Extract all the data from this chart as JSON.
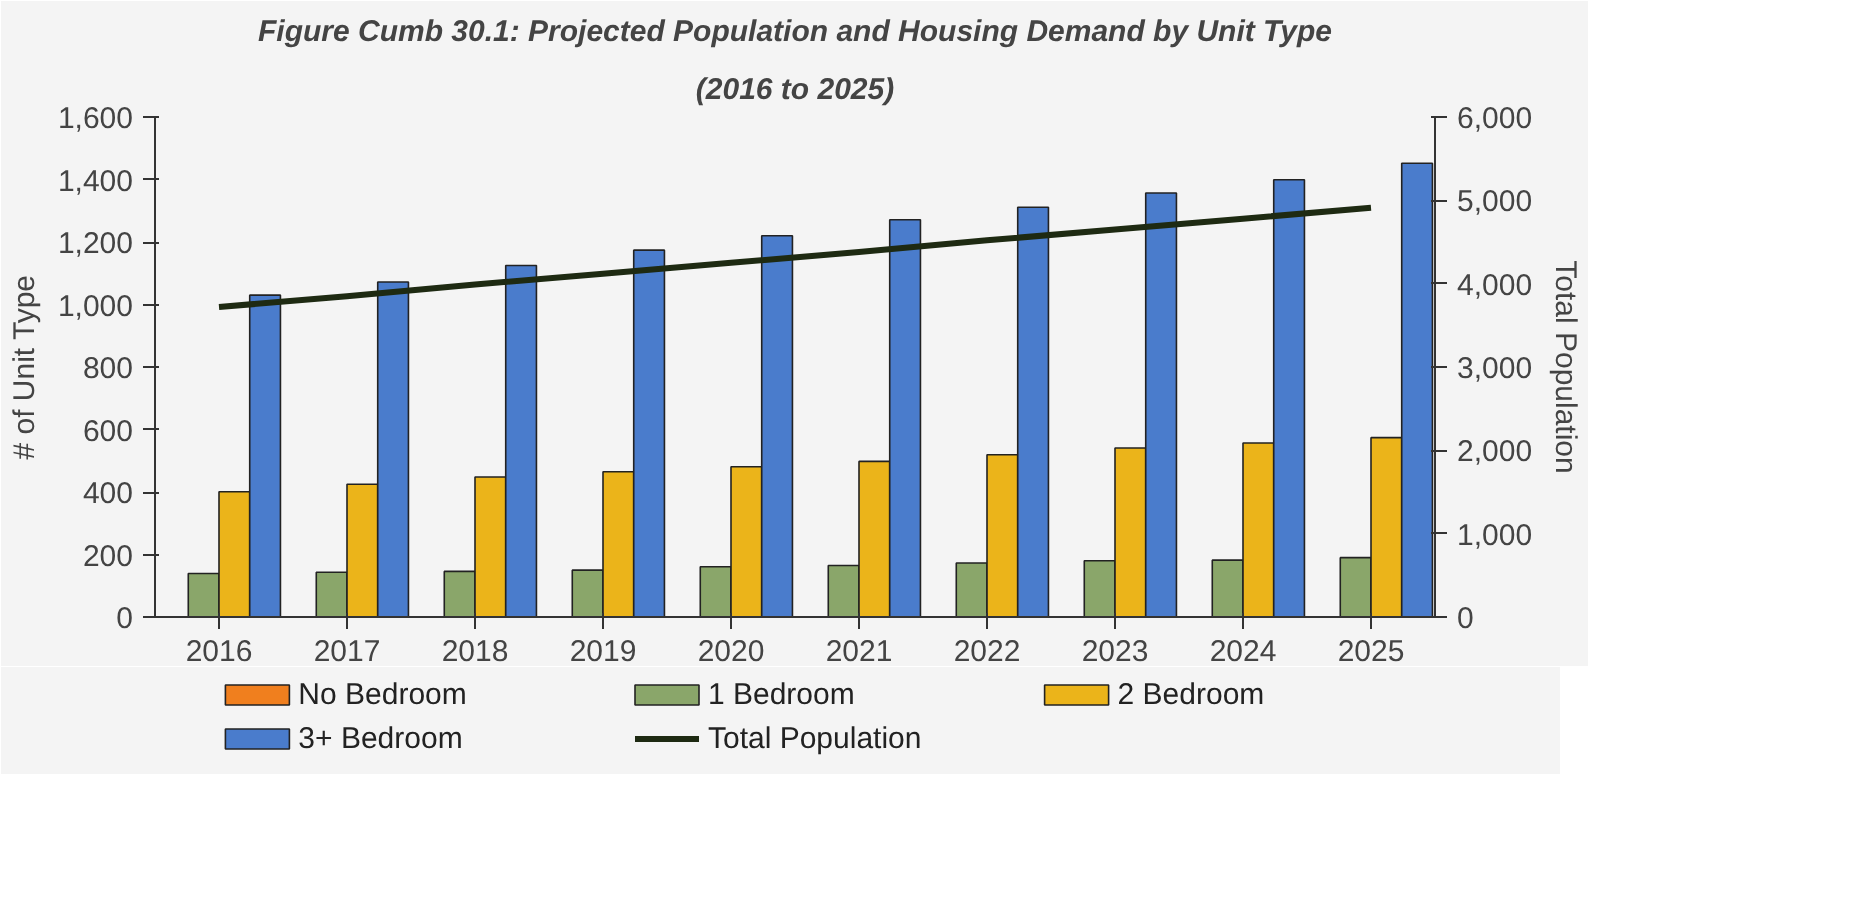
{
  "chart_data": {
    "type": "bar",
    "title": "Figure Cumb 30.1: Projected Population and Housing Demand by Unit Type",
    "subtitle": "(2016 to 2025)",
    "ylabel": "# of Unit Type",
    "y2label": "Total Population",
    "categories": [
      "2016",
      "2017",
      "2018",
      "2019",
      "2020",
      "2021",
      "2022",
      "2023",
      "2024",
      "2025"
    ],
    "series": [
      {
        "name": "No Bedroom",
        "color": "#f07f1e",
        "values": [
          0,
          0,
          0,
          0,
          0,
          0,
          0,
          0,
          0,
          0
        ]
      },
      {
        "name": "1 Bedroom",
        "color": "#8aa66a",
        "values": [
          139,
          143,
          146,
          150,
          161,
          165,
          173,
          180,
          182,
          190
        ]
      },
      {
        "name": "2 Bedroom",
        "color": "#ebb41a",
        "values": [
          401,
          425,
          448,
          465,
          481,
          498,
          519,
          541,
          557,
          574
        ]
      },
      {
        "name": "3+ Bedroom",
        "color": "#4a7ccc",
        "values": [
          1030,
          1072,
          1125,
          1174,
          1220,
          1271,
          1311,
          1357,
          1399,
          1452
        ]
      },
      {
        "name": "Total Population",
        "type": "line",
        "axis": "y2",
        "color": "#1e2a12",
        "values": [
          3720,
          3850,
          3990,
          4120,
          4250,
          4380,
          4520,
          4650,
          4780,
          4910
        ]
      }
    ],
    "ylim": [
      0,
      1600
    ],
    "yticks": [
      0,
      200,
      400,
      600,
      800,
      {
        "value": 1000,
        "label": "1,000"
      },
      {
        "value": 1200,
        "label": "1,200"
      },
      {
        "value": 1400,
        "label": "1,400"
      },
      {
        "value": 1600,
        "label": "1,600"
      }
    ],
    "y2lim": [
      0,
      6000
    ],
    "y2ticks": [
      0,
      {
        "value": 1000,
        "label": "1,000"
      },
      {
        "value": 2000,
        "label": "2,000"
      },
      {
        "value": 3000,
        "label": "3,000"
      },
      {
        "value": 4000,
        "label": "4,000"
      },
      {
        "value": 5000,
        "label": "5,000"
      },
      {
        "value": 6000,
        "label": "6,000"
      }
    ],
    "grid": false,
    "legend": "bottom"
  }
}
